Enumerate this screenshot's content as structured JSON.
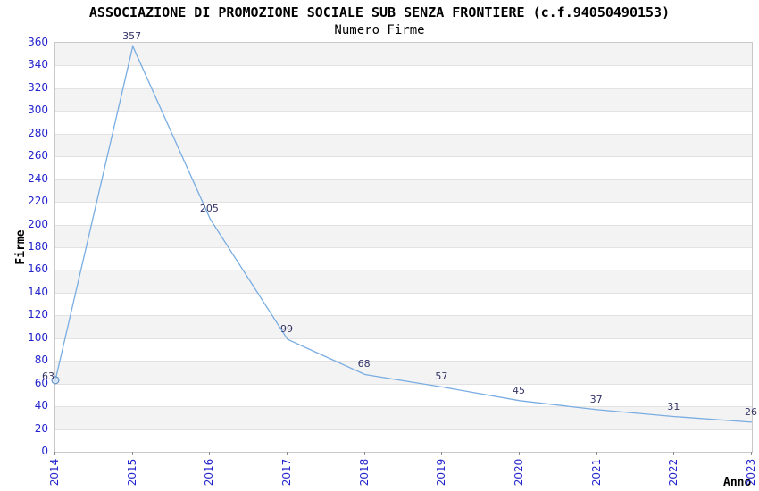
{
  "header": {
    "title": "ASSOCIAZIONE DI PROMOZIONE SOCIALE SUB SENZA FRONTIERE (c.f.94050490153)",
    "subtitle": "Numero Firme"
  },
  "chart_data": {
    "type": "line",
    "title": "ASSOCIAZIONE DI PROMOZIONE SOCIALE SUB SENZA FRONTIERE (c.f.94050490153)",
    "subtitle": "Numero Firme",
    "xlabel": "Anno",
    "ylabel": "Firme",
    "categories": [
      "2014",
      "2015",
      "2016",
      "2017",
      "2018",
      "2019",
      "2020",
      "2021",
      "2022",
      "2023"
    ],
    "values": [
      63,
      357,
      205,
      99,
      68,
      57,
      45,
      37,
      31,
      26
    ],
    "ylim": [
      0,
      360
    ],
    "ytick_step": 20,
    "grid": "horizontal-bands-and-lines",
    "legend_position": "none",
    "colors": {
      "line": "#79ade2",
      "marker_stroke": "#4f85c2",
      "marker_fill": "#cfe0f2",
      "tick_label": "#2424cc",
      "data_label": "#333366",
      "band": "#f3f3f3",
      "gridline": "#e2e2e2",
      "plot_border": "#c9c9c9",
      "text": "#000000"
    }
  }
}
